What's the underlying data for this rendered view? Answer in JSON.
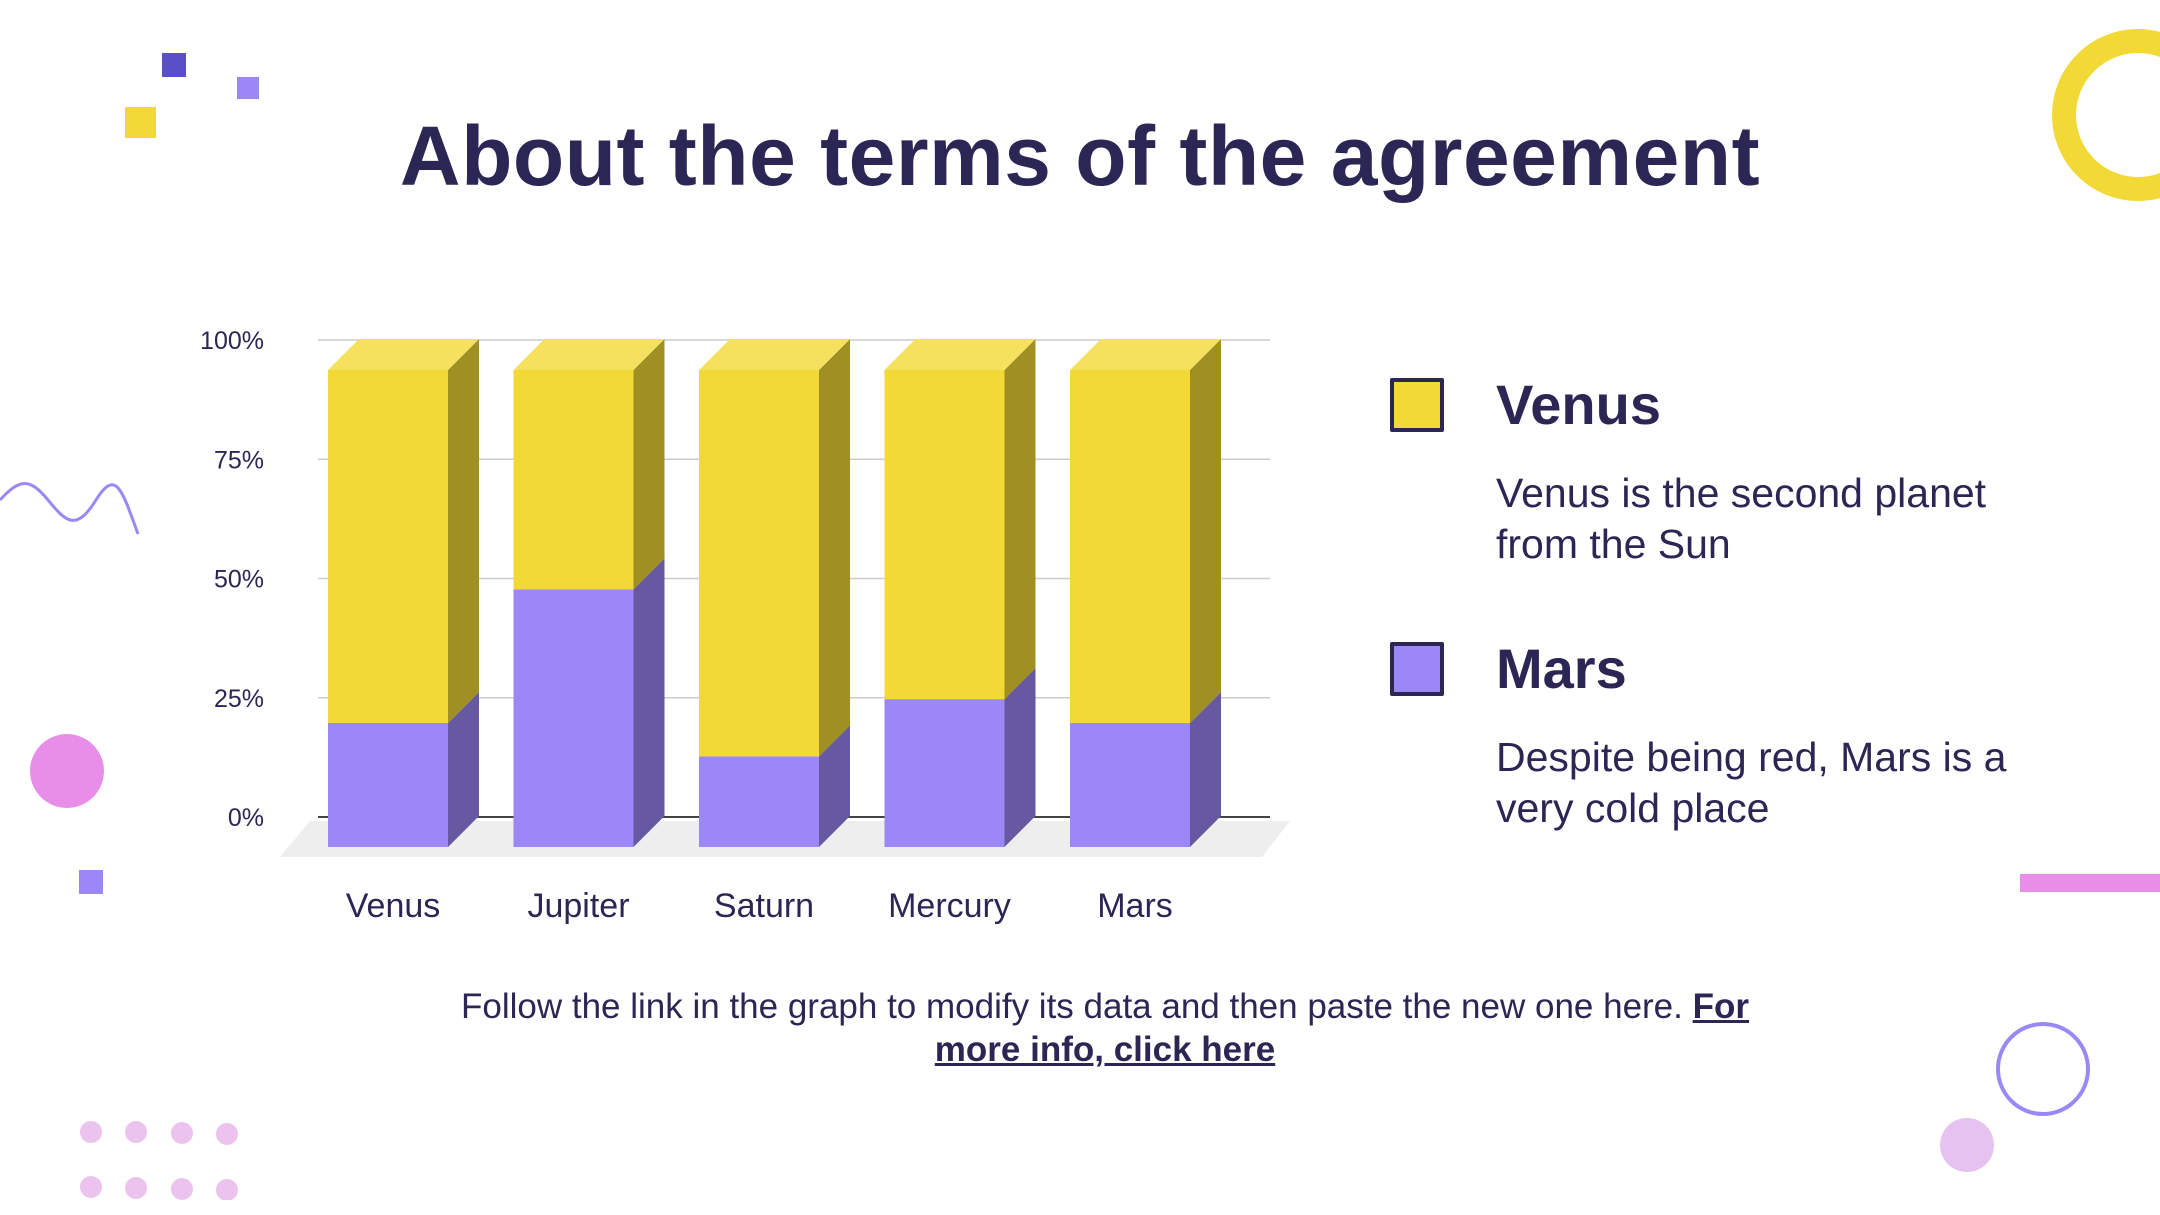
{
  "title": "About the terms of the agreement",
  "colors": {
    "venus": "#f2d935",
    "mars": "#9b87f5",
    "text": "#2c2654"
  },
  "chart_data": {
    "type": "bar",
    "stacked": true,
    "three_d": true,
    "categories": [
      "Venus",
      "Jupiter",
      "Saturn",
      "Mercury",
      "Mars"
    ],
    "series": [
      {
        "name": "Mars",
        "color": "#9b87f5",
        "values": [
          26,
          54,
          19,
          31,
          26
        ]
      },
      {
        "name": "Venus",
        "color": "#f2d935",
        "values": [
          74,
          46,
          81,
          69,
          74
        ]
      }
    ],
    "ylim": [
      0,
      100
    ],
    "yticks": [
      "0%",
      "25%",
      "50%",
      "75%",
      "100%"
    ],
    "grid": true
  },
  "legend": [
    {
      "name": "Venus",
      "description": "Venus is the second planet from the Sun",
      "color": "#f2d935"
    },
    {
      "name": "Mars",
      "description": "Despite being red, Mars is a very cold place",
      "color": "#9b87f5"
    }
  ],
  "footer": {
    "text": "Follow the link in the graph to modify its data and then paste the new one here.",
    "link": "For more info, click here"
  }
}
